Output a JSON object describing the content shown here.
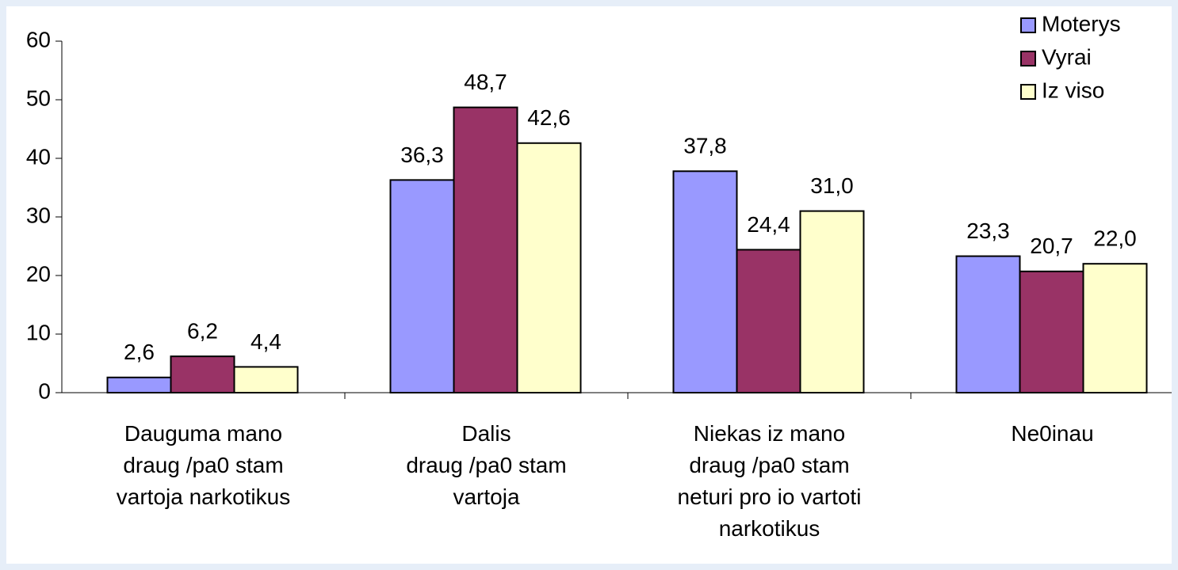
{
  "chart_data": {
    "type": "bar",
    "categories": [
      "Dauguma mano\ndraug  /pa0 stam\nvartoja narkotikus",
      "Dalis\ndraug  /pa0 stam\nvartoja",
      "Niekas iz mano\ndraug  /pa0 stam\nneturi pro  io vartoti\nnarkotikus",
      "Ne0inau"
    ],
    "series": [
      {
        "name": "Moterys",
        "color": "#9999ff",
        "values": [
          2.6,
          36.3,
          37.8,
          23.3
        ],
        "value_labels": [
          "2,6",
          "36,3",
          "37,8",
          "23,3"
        ]
      },
      {
        "name": "Vyrai",
        "color": "#993366",
        "values": [
          6.2,
          48.7,
          24.4,
          20.7
        ],
        "value_labels": [
          "6,2",
          "48,7",
          "24,4",
          "20,7"
        ]
      },
      {
        "name": "Iz viso",
        "color": "#ffffcc",
        "values": [
          4.4,
          42.6,
          31.0,
          22.0
        ],
        "value_labels": [
          "4,4",
          "42,6",
          "31,0",
          "22,0"
        ]
      }
    ],
    "ylim": [
      0,
      60
    ],
    "yticks": [
      0,
      10,
      20,
      30,
      40,
      50,
      60
    ],
    "grid": false,
    "legend": "upper right"
  }
}
